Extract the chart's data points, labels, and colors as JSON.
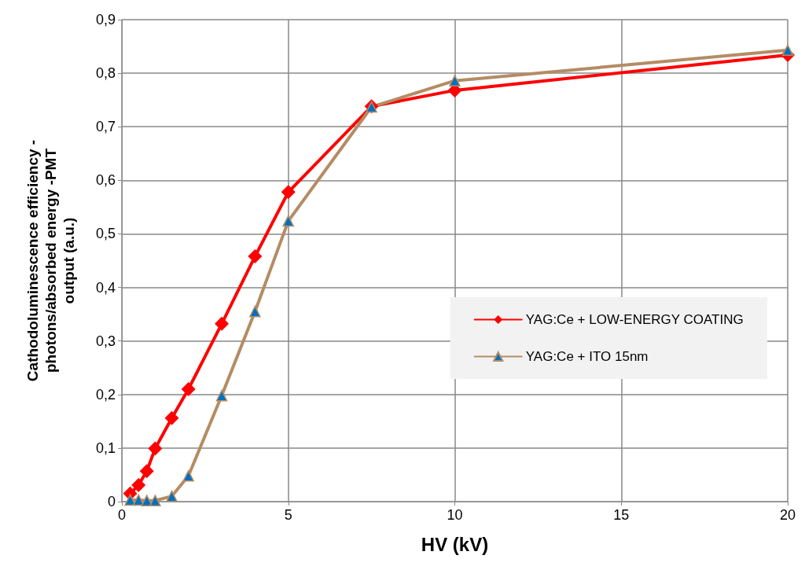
{
  "chart_data": {
    "type": "line",
    "xlabel": "HV (kV)",
    "ylabel": "Cathodoluminescence efficiency -\nphotons/absorbed energy -PMT\noutput (a.u.)",
    "x": [
      0.25,
      0.5,
      0.75,
      1,
      1.5,
      2,
      3,
      4,
      5,
      7.5,
      10,
      20
    ],
    "series": [
      {
        "name": "YAG:Ce + LOW-ENERGY COATING",
        "color": "#ff0000",
        "marker": "diamond",
        "values": [
          0.015,
          0.031,
          0.057,
          0.099,
          0.156,
          0.21,
          0.332,
          0.458,
          0.578,
          0.738,
          0.768,
          0.834
        ]
      },
      {
        "name": "YAG:Ce + ITO 15nm",
        "color": "#b48c64",
        "marker": "triangle",
        "values": [
          0.003,
          0.003,
          0.002,
          0.002,
          0.01,
          0.048,
          0.198,
          0.355,
          0.524,
          0.737,
          0.786,
          0.843
        ]
      }
    ],
    "xlim": [
      0,
      20
    ],
    "xticks": [
      0,
      5,
      10,
      15,
      20
    ],
    "ylim": [
      0,
      0.9
    ],
    "yticks": [
      0,
      {
        "value": 0.1,
        "label": "0,1"
      },
      {
        "value": 0.2,
        "label": "0,2"
      },
      {
        "value": 0.3,
        "label": "0,3"
      },
      {
        "value": 0.4,
        "label": "0,4"
      },
      {
        "value": 0.5,
        "label": "0,5"
      },
      {
        "value": 0.6,
        "label": "0,6"
      },
      {
        "value": 0.7,
        "label": "0,7"
      },
      {
        "value": 0.8,
        "label": "0,8"
      },
      {
        "value": 0.9,
        "label": "0,9"
      }
    ],
    "grid": true,
    "legend": "right",
    "line_style": "solid"
  }
}
